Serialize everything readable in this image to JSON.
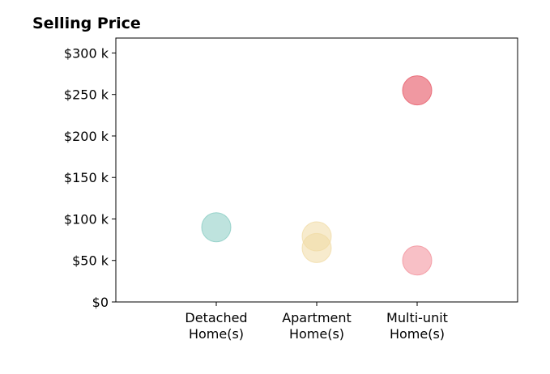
{
  "chart_data": {
    "type": "scatter",
    "title": "Selling Price",
    "xlabel": "",
    "ylabel": "",
    "categories": [
      [
        "Detached",
        "Home(s)"
      ],
      [
        "Apartment",
        "Home(s)"
      ],
      [
        "Multi-unit",
        "Home(s)"
      ]
    ],
    "xlim": [
      0,
      4
    ],
    "ylim": [
      0,
      318
    ],
    "yticks": [
      0,
      50,
      100,
      150,
      200,
      250,
      300
    ],
    "ytick_labels": [
      "$0",
      "$50 k",
      "$100 k",
      "$150 k",
      "$200 k",
      "$250 k",
      "$300 k"
    ],
    "grid": false,
    "points": [
      {
        "category": 1,
        "value": 90,
        "color": "#7ec8be",
        "opacity": 0.5
      },
      {
        "category": 2,
        "value": 79,
        "color": "#f0dba4",
        "opacity": 0.55
      },
      {
        "category": 2,
        "value": 65,
        "color": "#f0dba4",
        "opacity": 0.55
      },
      {
        "category": 3,
        "value": 255,
        "color": "#e8616e",
        "opacity": 0.65
      },
      {
        "category": 3,
        "value": 50,
        "color": "#f28c97",
        "opacity": 0.55
      }
    ]
  }
}
